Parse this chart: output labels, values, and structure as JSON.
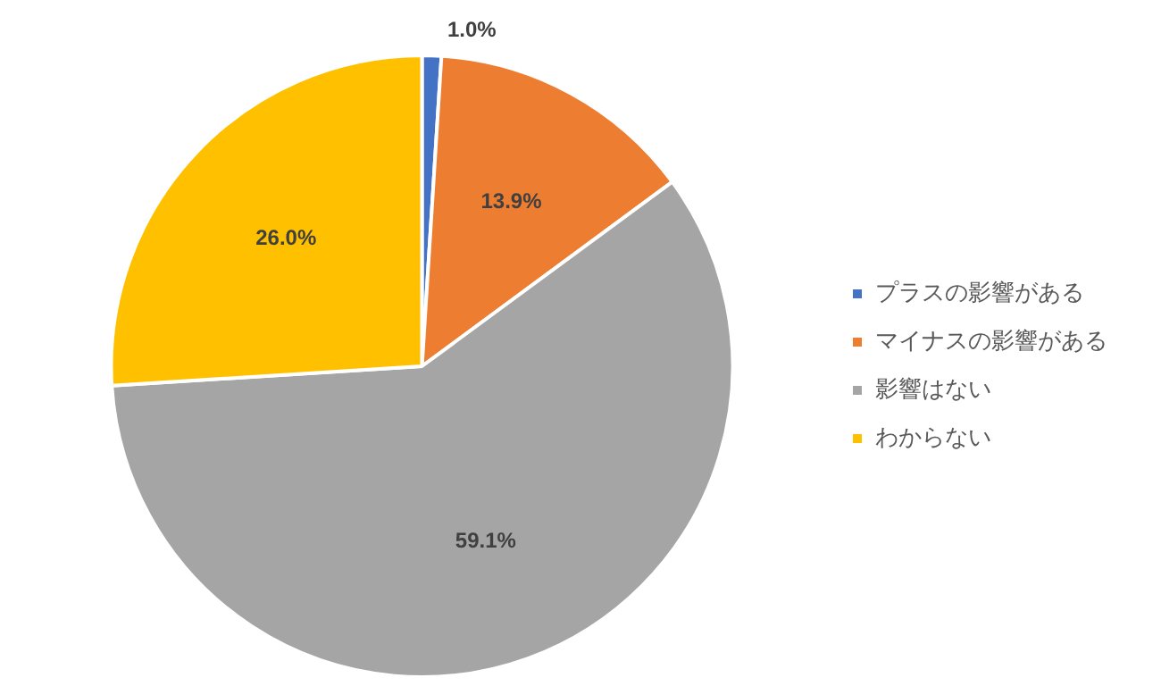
{
  "chart_data": {
    "type": "pie",
    "categories": [
      "プラスの影響がある",
      "マイナスの影響がある",
      "影響はない",
      "わからない"
    ],
    "values": [
      1.0,
      13.9,
      59.1,
      26.0
    ],
    "colors": [
      "#4472c4",
      "#ed7d31",
      "#a5a5a5",
      "#ffc000"
    ],
    "value_labels": [
      "1.0%",
      "13.9%",
      "59.1%",
      "26.0%"
    ],
    "legend": "right"
  }
}
